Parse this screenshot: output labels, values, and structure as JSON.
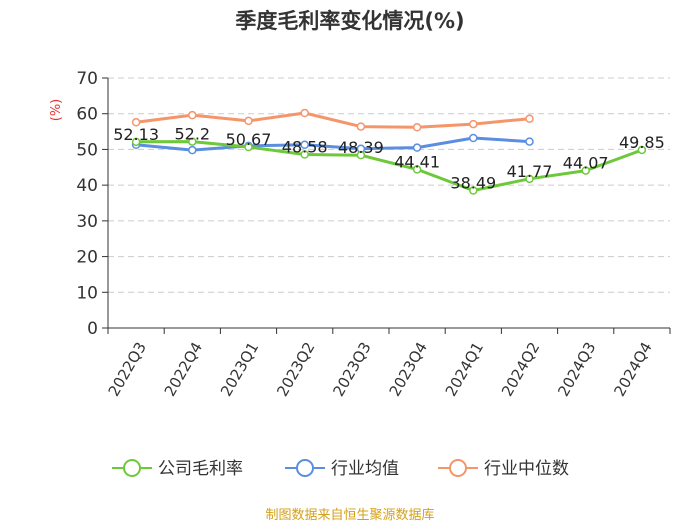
{
  "chart_data": {
    "type": "line",
    "title": "季度毛利率变化情况(%)",
    "ylabel": "(%)",
    "xlabel": "",
    "ylim": [
      0,
      70
    ],
    "yticks": [
      0,
      10,
      20,
      30,
      40,
      50,
      60,
      70
    ],
    "grid": true,
    "legend_position": "bottom",
    "categories": [
      "2022Q3",
      "2022Q4",
      "2023Q1",
      "2023Q2",
      "2023Q3",
      "2023Q4",
      "2024Q1",
      "2024Q2",
      "2024Q3",
      "2024Q4"
    ],
    "series": [
      {
        "name": "公司毛利率",
        "color": "#6dc83a",
        "values": [
          52.13,
          52.2,
          50.67,
          48.58,
          48.39,
          44.41,
          38.49,
          41.77,
          44.07,
          49.85
        ],
        "labels": [
          "52.13",
          "52.2",
          "50.67",
          "48.58",
          "48.39",
          "44.41",
          "38.49",
          "41.77",
          "44.07",
          "49.85"
        ]
      },
      {
        "name": "行业均值",
        "color": "#5b8ee0",
        "values": [
          51.3,
          49.8,
          51.0,
          51.3,
          50.2,
          50.5,
          53.2,
          52.2,
          null,
          null
        ]
      },
      {
        "name": "行业中位数",
        "color": "#f5956a",
        "values": [
          57.6,
          59.6,
          58.0,
          60.2,
          56.4,
          56.2,
          57.1,
          58.6,
          null,
          null
        ]
      }
    ]
  },
  "source": "制图数据来自恒生聚源数据库"
}
